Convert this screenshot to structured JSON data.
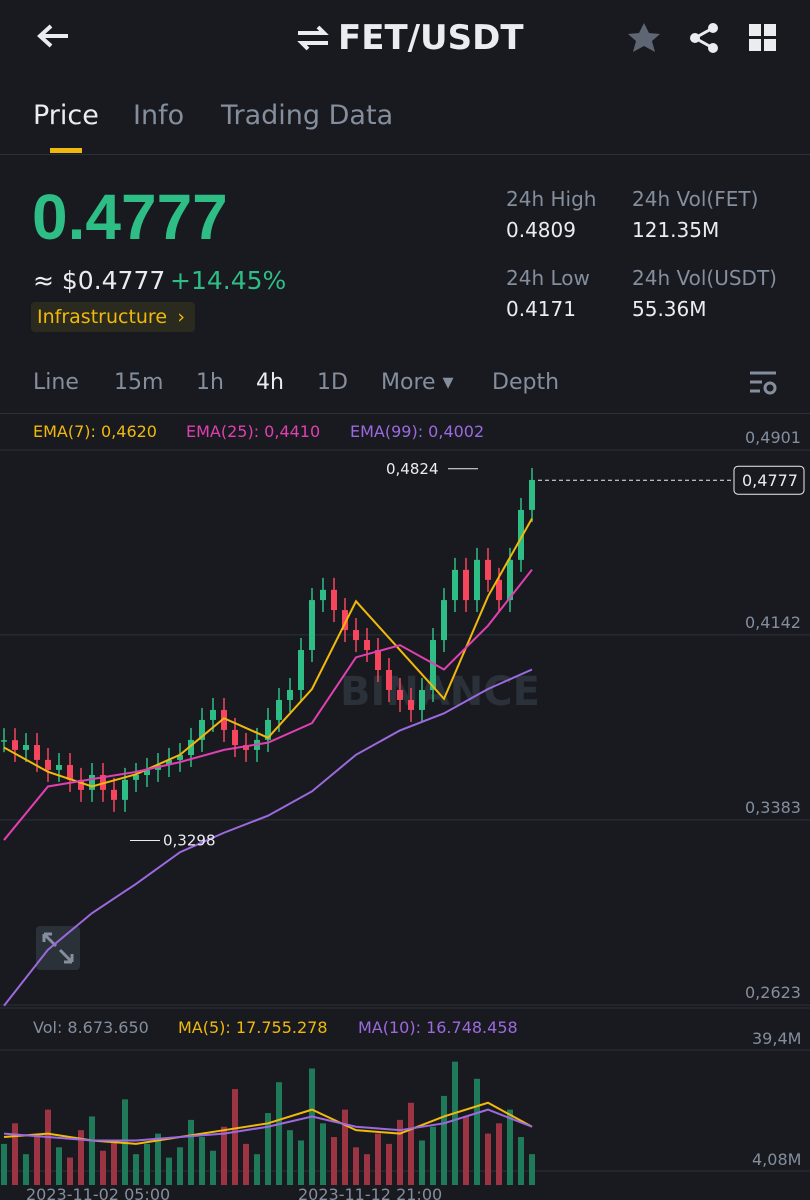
{
  "header": {
    "pair": "FET/USDT"
  },
  "tabs": [
    "Price",
    "Info",
    "Trading Data"
  ],
  "price": {
    "last": "0.4777",
    "fiat": "≈ $0.4777",
    "change": "+14.45%",
    "tag": "Infrastructure"
  },
  "stats": [
    {
      "label": "24h High",
      "value": "0.4809"
    },
    {
      "label": "24h Vol(FET)",
      "value": "121.35M"
    },
    {
      "label": "24h Low",
      "value": "0.4171"
    },
    {
      "label": "24h Vol(USDT)",
      "value": "55.36M"
    }
  ],
  "intervals": [
    "Line",
    "15m",
    "1h",
    "4h",
    "1D",
    "More",
    "Depth"
  ],
  "chart_data": [
    {
      "type": "candlestick",
      "legend": [
        "EMA(7): 0,4620",
        "EMA(25): 0,4410",
        "EMA(99): 0,4002"
      ],
      "values": [
        0.371,
        0.367,
        0.369,
        0.3629,
        0.3588,
        0.3608,
        0.3547,
        0.3506,
        0.3567,
        0.3506,
        0.3465,
        0.3547,
        0.3567,
        0.3588,
        0.3608,
        0.3629,
        0.3649,
        0.3711,
        0.3793,
        0.3834,
        0.3752,
        0.369,
        0.367,
        0.3711,
        0.3793,
        0.3875,
        0.3916,
        0.408,
        0.4285,
        0.4327,
        0.4244,
        0.4162,
        0.4121,
        0.408,
        0.3998,
        0.3916,
        0.3875,
        0.3834,
        0.3916,
        0.4121,
        0.4285,
        0.4409,
        0.4285,
        0.445,
        0.4368,
        0.4285,
        0.445,
        0.4655,
        0.4778
      ],
      "series": [
        {
          "name": "EMA(7)",
          "color": "#f0b90b",
          "x": [
            0,
            4,
            8,
            12,
            16,
            20,
            24,
            28,
            32,
            36,
            40,
            44,
            48
          ],
          "values": [
            0.368,
            0.358,
            0.352,
            0.357,
            0.365,
            0.38,
            0.372,
            0.392,
            0.428,
            0.408,
            0.388,
            0.43,
            0.462
          ]
        },
        {
          "name": "EMA(25)",
          "color": "#e040b0",
          "x": [
            0,
            4,
            8,
            12,
            16,
            20,
            24,
            28,
            32,
            36,
            40,
            44,
            48
          ],
          "values": [
            0.33,
            0.352,
            0.355,
            0.358,
            0.362,
            0.367,
            0.37,
            0.378,
            0.405,
            0.41,
            0.4,
            0.418,
            0.441
          ]
        },
        {
          "name": "EMA(99)",
          "color": "#9c6ade",
          "x": [
            0,
            4,
            8,
            12,
            16,
            20,
            24,
            28,
            32,
            36,
            40,
            44,
            48
          ],
          "values": [
            0.262,
            0.285,
            0.3,
            0.312,
            0.325,
            0.333,
            0.34,
            0.35,
            0.365,
            0.375,
            0.382,
            0.392,
            0.4
          ]
        }
      ],
      "annotations": [
        {
          "value": 0.4824,
          "label": "0,4824"
        },
        {
          "value": 0.3298,
          "label": "0,3298"
        }
      ],
      "current": {
        "value": 0.4777,
        "label": "0,4777"
      },
      "ylim": [
        0.2623,
        0.4901
      ],
      "yticks": [
        {
          "value": 0.4901,
          "label": "0,4901"
        },
        {
          "value": 0.4142,
          "label": "0,4142"
        },
        {
          "value": 0.3383,
          "label": "0,3383"
        },
        {
          "value": 0.2623,
          "label": "0,2623"
        }
      ],
      "grid": true
    },
    {
      "type": "bar",
      "legend": [
        "Vol: 8.673.650",
        "MA(5): 17.755.278",
        "MA(10): 16.748.458"
      ],
      "values": [
        12,
        18,
        9,
        14,
        22,
        11,
        8,
        16,
        20,
        10,
        13,
        25,
        9,
        12,
        15,
        8,
        11,
        19,
        14,
        10,
        17,
        28,
        12,
        9,
        21,
        30,
        16,
        13,
        34,
        18,
        14,
        22,
        11,
        9,
        15,
        12,
        19,
        24,
        13,
        17,
        26,
        36,
        20,
        31,
        15,
        18,
        22,
        14,
        9
      ],
      "series": [
        {
          "name": "MA(5)",
          "color": "#f0b90b",
          "x": [
            0,
            4,
            8,
            12,
            16,
            20,
            24,
            28,
            32,
            36,
            40,
            44,
            48
          ],
          "values": [
            14,
            15,
            13,
            12,
            14,
            16,
            18,
            22,
            16,
            15,
            20,
            24,
            17
          ]
        },
        {
          "name": "MA(10)",
          "color": "#9c6ade",
          "x": [
            0,
            4,
            8,
            12,
            16,
            20,
            24,
            28,
            32,
            36,
            40,
            44,
            48
          ],
          "values": [
            15,
            14,
            13,
            13,
            14,
            15,
            17,
            20,
            17,
            16,
            18,
            22,
            17
          ]
        }
      ],
      "ylim": [
        0,
        39.4
      ],
      "yticks": [
        {
          "value": 39.4,
          "label": "39,4M"
        },
        {
          "value": 4.08,
          "label": "4,08M"
        }
      ],
      "x_labels": [
        "2023-11-02 05:00",
        "2023-11-12 21:00"
      ]
    }
  ]
}
